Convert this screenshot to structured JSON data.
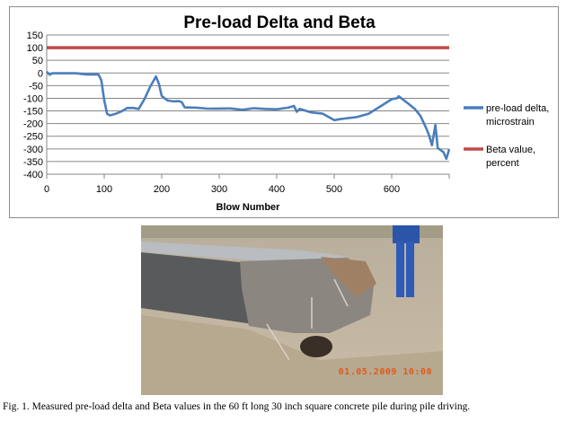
{
  "chart_data": {
    "type": "line",
    "title": "Pre-load Delta and Beta",
    "xlabel": "Blow Number",
    "ylabel": "",
    "xlim": [
      0,
      700
    ],
    "ylim": [
      -400,
      150
    ],
    "xticks": [
      0,
      100,
      200,
      300,
      400,
      500,
      600
    ],
    "yticks": [
      150,
      100,
      50,
      0,
      -50,
      -100,
      -150,
      -200,
      -250,
      -300,
      -350,
      -400
    ],
    "grid": "horizontal",
    "legend": "right",
    "series": [
      {
        "name": "pre-load delta, microstrain",
        "color": "#4a7ebb",
        "x": [
          0,
          5,
          10,
          30,
          50,
          70,
          85,
          90,
          95,
          100,
          105,
          110,
          120,
          130,
          140,
          150,
          160,
          170,
          180,
          185,
          190,
          195,
          200,
          210,
          220,
          230,
          235,
          240,
          260,
          280,
          300,
          320,
          340,
          360,
          380,
          400,
          420,
          430,
          435,
          440,
          460,
          480,
          500,
          510,
          540,
          560,
          580,
          600,
          610,
          612,
          630,
          640,
          650,
          660,
          665,
          670,
          676,
          680,
          690,
          695,
          700
        ],
        "y": [
          5,
          -5,
          2,
          3,
          3,
          -2,
          -3,
          -5,
          -30,
          -110,
          -165,
          -172,
          -165,
          -155,
          -140,
          -138,
          -140,
          -100,
          -50,
          -30,
          -10,
          -40,
          -90,
          -110,
          -115,
          -115,
          -120,
          -140,
          -140,
          -142,
          -140,
          -138,
          -142,
          -135,
          -138,
          -140,
          -135,
          -130,
          -155,
          -145,
          -160,
          -165,
          -190,
          -185,
          -175,
          -160,
          -130,
          -100,
          -95,
          -88,
          -120,
          -140,
          -170,
          -220,
          -250,
          -290,
          -210,
          -300,
          -315,
          -340,
          -300
        ]
      },
      {
        "name": "Beta value, percent",
        "color": "#be4b48",
        "x": [
          0,
          700
        ],
        "y": [
          100,
          100
        ]
      }
    ]
  },
  "legend_lines": [
    [
      "pre-load delta,",
      "microstrain"
    ],
    [
      "Beta value,",
      "percent"
    ]
  ],
  "photo": {
    "timestamp": "01.05.2009 10:00"
  },
  "caption": "Fig. 1. Measured pre-load delta and Beta values in the 60 ft long 30 inch square concrete pile during pile driving."
}
